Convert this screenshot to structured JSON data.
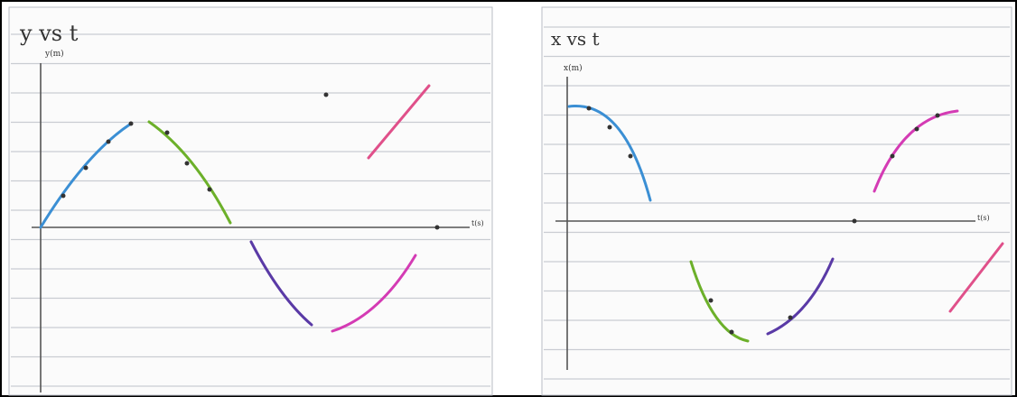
{
  "panels": [
    {
      "title": "y vs t",
      "y_axis_label": "y(m)",
      "x_axis_label": "t(s)"
    },
    {
      "title": "x vs t",
      "y_axis_label": "x(m)",
      "x_axis_label": "t(s)"
    }
  ]
}
